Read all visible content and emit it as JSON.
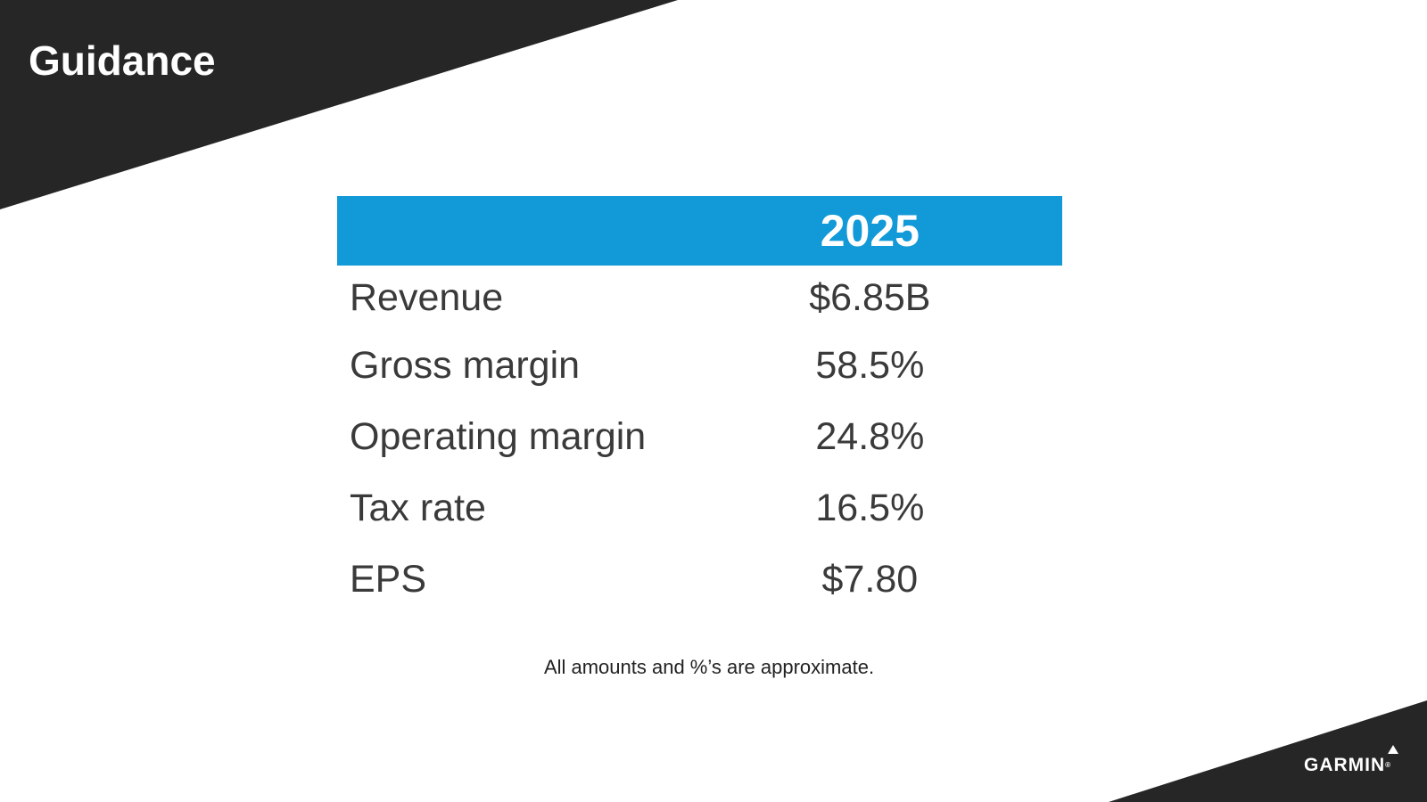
{
  "slide": {
    "title": "Guidance",
    "footnote": "All amounts and %’s are approximate."
  },
  "table": {
    "year_header": "2025",
    "rows": [
      {
        "label": "Revenue",
        "value": "$6.85B"
      },
      {
        "label": "Gross margin",
        "value": "58.5%"
      },
      {
        "label": "Operating margin",
        "value": "24.8%"
      },
      {
        "label": "Tax rate",
        "value": "16.5%"
      },
      {
        "label": "EPS",
        "value": "$7.80"
      }
    ]
  },
  "logo": {
    "text": "GARMIN",
    "registered_mark": "®"
  },
  "colors": {
    "dark_band": "#262626",
    "header_blue": "#1299d8",
    "text_gray": "#3a3a3a"
  }
}
